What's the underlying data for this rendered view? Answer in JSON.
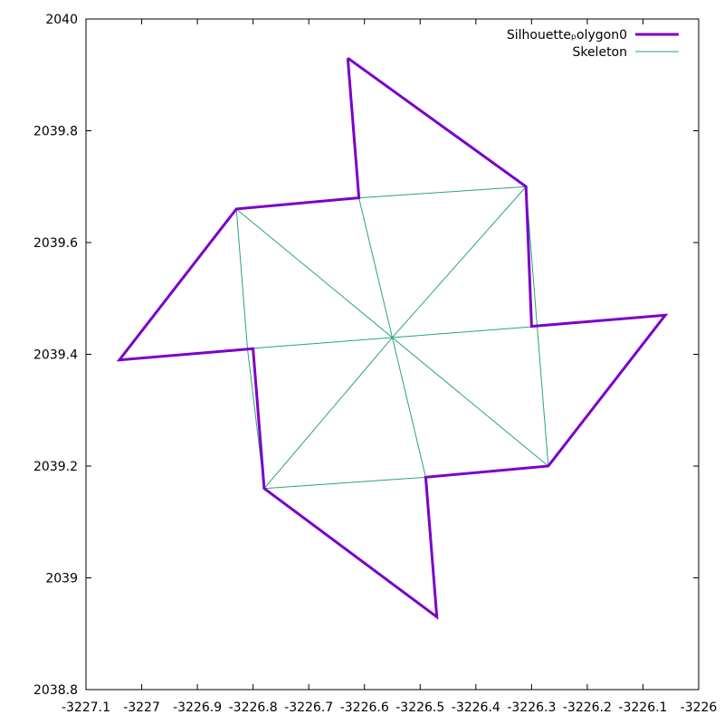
{
  "chart_data": {
    "type": "line",
    "title": "",
    "xlabel": "",
    "ylabel": "",
    "xlim": [
      -3227.1,
      -3226
    ],
    "ylim": [
      2038.8,
      2040
    ],
    "grid": false,
    "legend_placement": "top-right",
    "x_ticks": [
      {
        "value": -3227.1,
        "label": "-3227.1"
      },
      {
        "value": -3227.0,
        "label": "-3227"
      },
      {
        "value": -3226.9,
        "label": "-3226.9"
      },
      {
        "value": -3226.8,
        "label": "-3226.8"
      },
      {
        "value": -3226.7,
        "label": "-3226.7"
      },
      {
        "value": -3226.6,
        "label": "-3226.6"
      },
      {
        "value": -3226.5,
        "label": "-3226.5"
      },
      {
        "value": -3226.4,
        "label": "-3226.4"
      },
      {
        "value": -3226.3,
        "label": "-3226.3"
      },
      {
        "value": -3226.2,
        "label": "-3226.2"
      },
      {
        "value": -3226.1,
        "label": "-3226.1"
      },
      {
        "value": -3226.0,
        "label": "-3226"
      }
    ],
    "y_ticks": [
      {
        "value": 2038.8,
        "label": "2038.8"
      },
      {
        "value": 2039.0,
        "label": "2039"
      },
      {
        "value": 2039.2,
        "label": "2039.2"
      },
      {
        "value": 2039.4,
        "label": "2039.4"
      },
      {
        "value": 2039.6,
        "label": "2039.6"
      },
      {
        "value": 2039.8,
        "label": "2039.8"
      },
      {
        "value": 2040.0,
        "label": "2040"
      }
    ],
    "series": [
      {
        "name": "Silhouetteₚolygon0",
        "color": "#7b00c8",
        "points": [
          [
            -3226.63,
            2039.93
          ],
          [
            -3226.31,
            2039.7
          ],
          [
            -3226.3,
            2039.45
          ],
          [
            -3226.06,
            2039.47
          ],
          [
            -3226.27,
            2039.2
          ],
          [
            -3226.49,
            2039.18
          ],
          [
            -3226.47,
            2038.93
          ],
          [
            -3226.78,
            2039.16
          ],
          [
            -3226.8,
            2039.41
          ],
          [
            -3227.04,
            2039.39
          ],
          [
            -3226.83,
            2039.66
          ],
          [
            -3226.61,
            2039.68
          ],
          [
            -3226.63,
            2039.93
          ]
        ]
      },
      {
        "name": "Skeleton",
        "color": "#2aa37a",
        "segments": [
          [
            [
              -3226.83,
              2039.66
            ],
            [
              -3226.81,
              2039.41
            ]
          ],
          [
            [
              -3226.81,
              2039.41
            ],
            [
              -3226.78,
              2039.16
            ]
          ],
          [
            [
              -3226.78,
              2039.16
            ],
            [
              -3226.49,
              2039.18
            ]
          ],
          [
            [
              -3226.49,
              2039.18
            ],
            [
              -3226.27,
              2039.2
            ]
          ],
          [
            [
              -3226.27,
              2039.2
            ],
            [
              -3226.29,
              2039.45
            ]
          ],
          [
            [
              -3226.29,
              2039.45
            ],
            [
              -3226.31,
              2039.7
            ]
          ],
          [
            [
              -3226.31,
              2039.7
            ],
            [
              -3226.61,
              2039.68
            ]
          ],
          [
            [
              -3226.61,
              2039.68
            ],
            [
              -3226.83,
              2039.66
            ]
          ],
          [
            [
              -3226.83,
              2039.66
            ],
            [
              -3226.55,
              2039.43
            ]
          ],
          [
            [
              -3226.55,
              2039.43
            ],
            [
              -3226.27,
              2039.2
            ]
          ],
          [
            [
              -3226.78,
              2039.16
            ],
            [
              -3226.55,
              2039.43
            ]
          ],
          [
            [
              -3226.55,
              2039.43
            ],
            [
              -3226.31,
              2039.7
            ]
          ],
          [
            [
              -3226.61,
              2039.68
            ],
            [
              -3226.55,
              2039.43
            ]
          ],
          [
            [
              -3226.55,
              2039.43
            ],
            [
              -3226.49,
              2039.18
            ]
          ],
          [
            [
              -3226.81,
              2039.41
            ],
            [
              -3226.55,
              2039.43
            ]
          ],
          [
            [
              -3226.55,
              2039.43
            ],
            [
              -3226.29,
              2039.45
            ]
          ]
        ]
      }
    ]
  }
}
